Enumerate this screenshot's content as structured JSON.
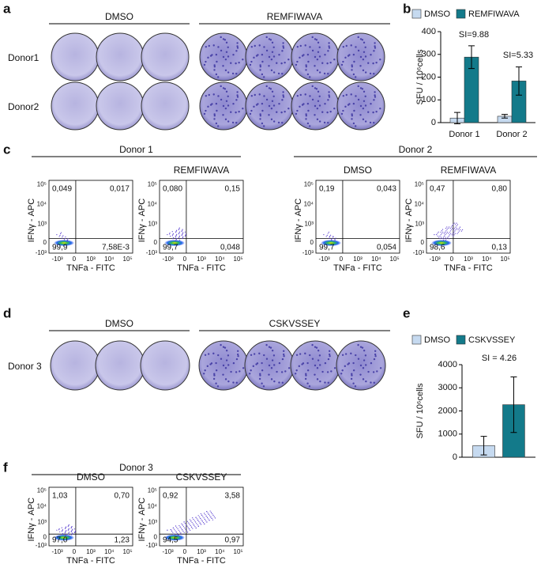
{
  "panel_labels": [
    "a",
    "b",
    "c",
    "d",
    "e",
    "f"
  ],
  "wells": [
    {
      "groups": [
        "DMSO",
        "REMFIWAVA"
      ],
      "rows": [
        "Donor1",
        "Donor2"
      ]
    },
    {
      "groups": [
        "DMSO",
        "CSKVSSEY"
      ],
      "rows": [
        "Donor 3"
      ]
    }
  ],
  "flow": {
    "y_label": "IFNγ - APC",
    "y_ticks": [
      "10⁵",
      "10⁴",
      "10³",
      "0",
      "-10³"
    ],
    "x_ticks": [
      "-10³",
      "0",
      "10³",
      "10⁴",
      "10⁵"
    ],
    "panels": [
      {
        "x_label": "TNFa -  FITC",
        "groups": [
          "Donor 1",
          "Donor 2"
        ],
        "plots": [
          {
            "quadrants": [
              "0,049",
              "0,017",
              "99,9",
              "7,58E-3"
            ]
          },
          {
            "title": "REMFIWAVA",
            "quadrants": [
              "0,080",
              "0,15",
              "99,7",
              "0,048"
            ]
          },
          {
            "title": "DMSO",
            "quadrants": [
              "0,19",
              "0,043",
              "99,7",
              "0,054"
            ]
          },
          {
            "title": "REMFIWAVA",
            "quadrants": [
              "0,47",
              "0,80",
              "98,6",
              "0,13"
            ]
          }
        ]
      },
      {
        "x_label": "TNFa - FITC",
        "groups": [
          "Donor 3"
        ],
        "plots": [
          {
            "title": "DMSO",
            "quadrants": [
              "1,03",
              "0,70",
              "97,0",
              "1,23"
            ]
          },
          {
            "title": "CSKVSSEY",
            "quadrants": [
              "0,92",
              "3,58",
              "94,5",
              "0,97"
            ]
          }
        ]
      }
    ]
  },
  "chart_data": [
    {
      "type": "bar",
      "categories": [
        "Donor 1",
        "Donor 2"
      ],
      "series": [
        {
          "name": "DMSO",
          "color": "#c6daf0",
          "values": [
            20,
            28
          ],
          "errors": [
            25,
            8
          ]
        },
        {
          "name": "REMFIWAVA",
          "color": "#137a8a",
          "values": [
            288,
            183
          ],
          "errors": [
            50,
            62
          ]
        }
      ],
      "ylim": [
        0,
        400
      ],
      "yticks": [
        0,
        100,
        200,
        300,
        400
      ],
      "ylabel": "SFU / 10⁶cells",
      "annotations": [
        "SI=9.88",
        "SI=5.33"
      ]
    },
    {
      "type": "bar",
      "categories": [
        null
      ],
      "series": [
        {
          "name": "DMSO",
          "color": "#c6daf0",
          "values": [
            500
          ],
          "errors": [
            400
          ]
        },
        {
          "name": "CSKVSSEY",
          "color": "#137a8a",
          "values": [
            2270
          ],
          "errors": [
            1200
          ]
        }
      ],
      "ylim": [
        0,
        4000
      ],
      "yticks": [
        0,
        1000,
        2000,
        3000,
        4000
      ],
      "ylabel": "SFU / 10⁶cells",
      "annotations": [
        "SI = 4.26"
      ]
    }
  ]
}
